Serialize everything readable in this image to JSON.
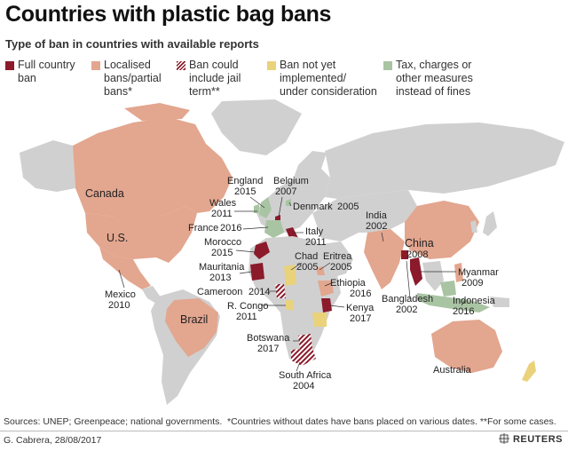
{
  "title": "Countries with plastic bag bans",
  "subtitle": "Type of ban in countries with available reports",
  "legend": [
    {
      "label": "Full country\nban",
      "color": "#8b1a2b",
      "pattern": false
    },
    {
      "label": "Localised\nbans/partial\nbans*",
      "color": "#e3a68f",
      "pattern": false
    },
    {
      "label": "Ban could\ninclude jail\nterm**",
      "color": "#8b1a2b",
      "pattern": true
    },
    {
      "label": "Ban not yet\nimplemented/\nunder consideration",
      "color": "#ead27a",
      "pattern": false
    },
    {
      "label": "Tax, charges or\nother measures\ninstead of fines",
      "color": "#a9c4a3",
      "pattern": false
    }
  ],
  "colors": {
    "land": "#d0d0d0",
    "full_ban": "#8b1a2b",
    "partial": "#e3a68f",
    "not_yet": "#ead27a",
    "tax": "#a9c4a3",
    "ocean": "#ffffff"
  },
  "countries": [
    {
      "name": "Canada",
      "year": ""
    },
    {
      "name": "U.S.",
      "year": ""
    },
    {
      "name": "Mexico",
      "year": "2010"
    },
    {
      "name": "Brazil",
      "year": ""
    },
    {
      "name": "England",
      "year": "2015"
    },
    {
      "name": "Belgium",
      "year": "2007"
    },
    {
      "name": "Wales",
      "year": "2011"
    },
    {
      "name": "Denmark",
      "year": "2005"
    },
    {
      "name": "France",
      "year": "2016"
    },
    {
      "name": "Italy",
      "year": "2011"
    },
    {
      "name": "Morocco",
      "year": "2015"
    },
    {
      "name": "Mauritania",
      "year": "2013"
    },
    {
      "name": "Chad",
      "year": "2005"
    },
    {
      "name": "Eritrea",
      "year": "2005"
    },
    {
      "name": "Cameroon",
      "year": "2014"
    },
    {
      "name": "Ethiopia",
      "year": "2016"
    },
    {
      "name": "R. Congo",
      "year": "2011"
    },
    {
      "name": "Kenya",
      "year": "2017"
    },
    {
      "name": "Botswana",
      "year": "2017"
    },
    {
      "name": "South Africa",
      "year": "2004"
    },
    {
      "name": "India",
      "year": "2002"
    },
    {
      "name": "China",
      "year": "2008"
    },
    {
      "name": "Myanmar",
      "year": "2009"
    },
    {
      "name": "Bangladesh",
      "year": "2002"
    },
    {
      "name": "Indonesia",
      "year": "2016"
    },
    {
      "name": "Australia",
      "year": ""
    }
  ],
  "footer": {
    "sources": "Sources: UNEP; Greenpeace; national governments.",
    "footnote": "*Countries without dates have bans placed on various dates. **For some cases.",
    "credit": "G. Cabrera, 28/08/2017",
    "brand": "REUTERS"
  }
}
